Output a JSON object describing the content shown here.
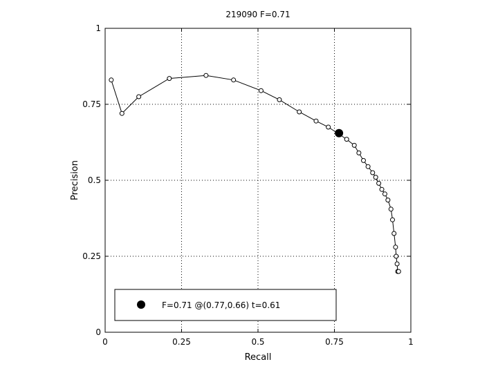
{
  "chart_data": {
    "type": "line",
    "title": "219090 F=0.71",
    "xlabel": "Recall",
    "ylabel": "Precision",
    "xlim": [
      0,
      1
    ],
    "ylim": [
      0,
      1
    ],
    "xticks": [
      0,
      0.25,
      0.5,
      0.75,
      1
    ],
    "xtick_labels": [
      "0",
      "0.25",
      "0.5",
      "0.75",
      "1"
    ],
    "yticks": [
      0,
      0.25,
      0.5,
      0.75,
      1
    ],
    "ytick_labels": [
      "0",
      "0.25",
      "0.5",
      "0.75",
      "1"
    ],
    "grid": true,
    "series": [
      {
        "marker": "open-circle",
        "color": "#000000",
        "x": [
          0.02,
          0.055,
          0.11,
          0.21,
          0.33,
          0.42,
          0.51,
          0.57,
          0.635,
          0.69,
          0.73,
          0.79,
          0.815,
          0.83,
          0.845,
          0.86,
          0.875,
          0.885,
          0.895,
          0.905,
          0.915,
          0.925,
          0.935,
          0.94,
          0.945,
          0.95,
          0.952,
          0.955,
          0.957,
          0.96
        ],
        "y": [
          0.83,
          0.72,
          0.775,
          0.835,
          0.845,
          0.83,
          0.795,
          0.765,
          0.725,
          0.695,
          0.675,
          0.635,
          0.615,
          0.59,
          0.565,
          0.545,
          0.525,
          0.51,
          0.49,
          0.47,
          0.455,
          0.435,
          0.405,
          0.37,
          0.325,
          0.28,
          0.25,
          0.225,
          0.2,
          0.2
        ]
      }
    ],
    "highlight_point": {
      "x": 0.765,
      "y": 0.655,
      "marker": "filled-circle",
      "color": "#000000"
    },
    "legend": {
      "placement": "bottom-left",
      "entries": [
        {
          "marker": "filled-circle",
          "label": "F=0.71 @(0.77,0.66) t=0.61"
        }
      ]
    }
  }
}
